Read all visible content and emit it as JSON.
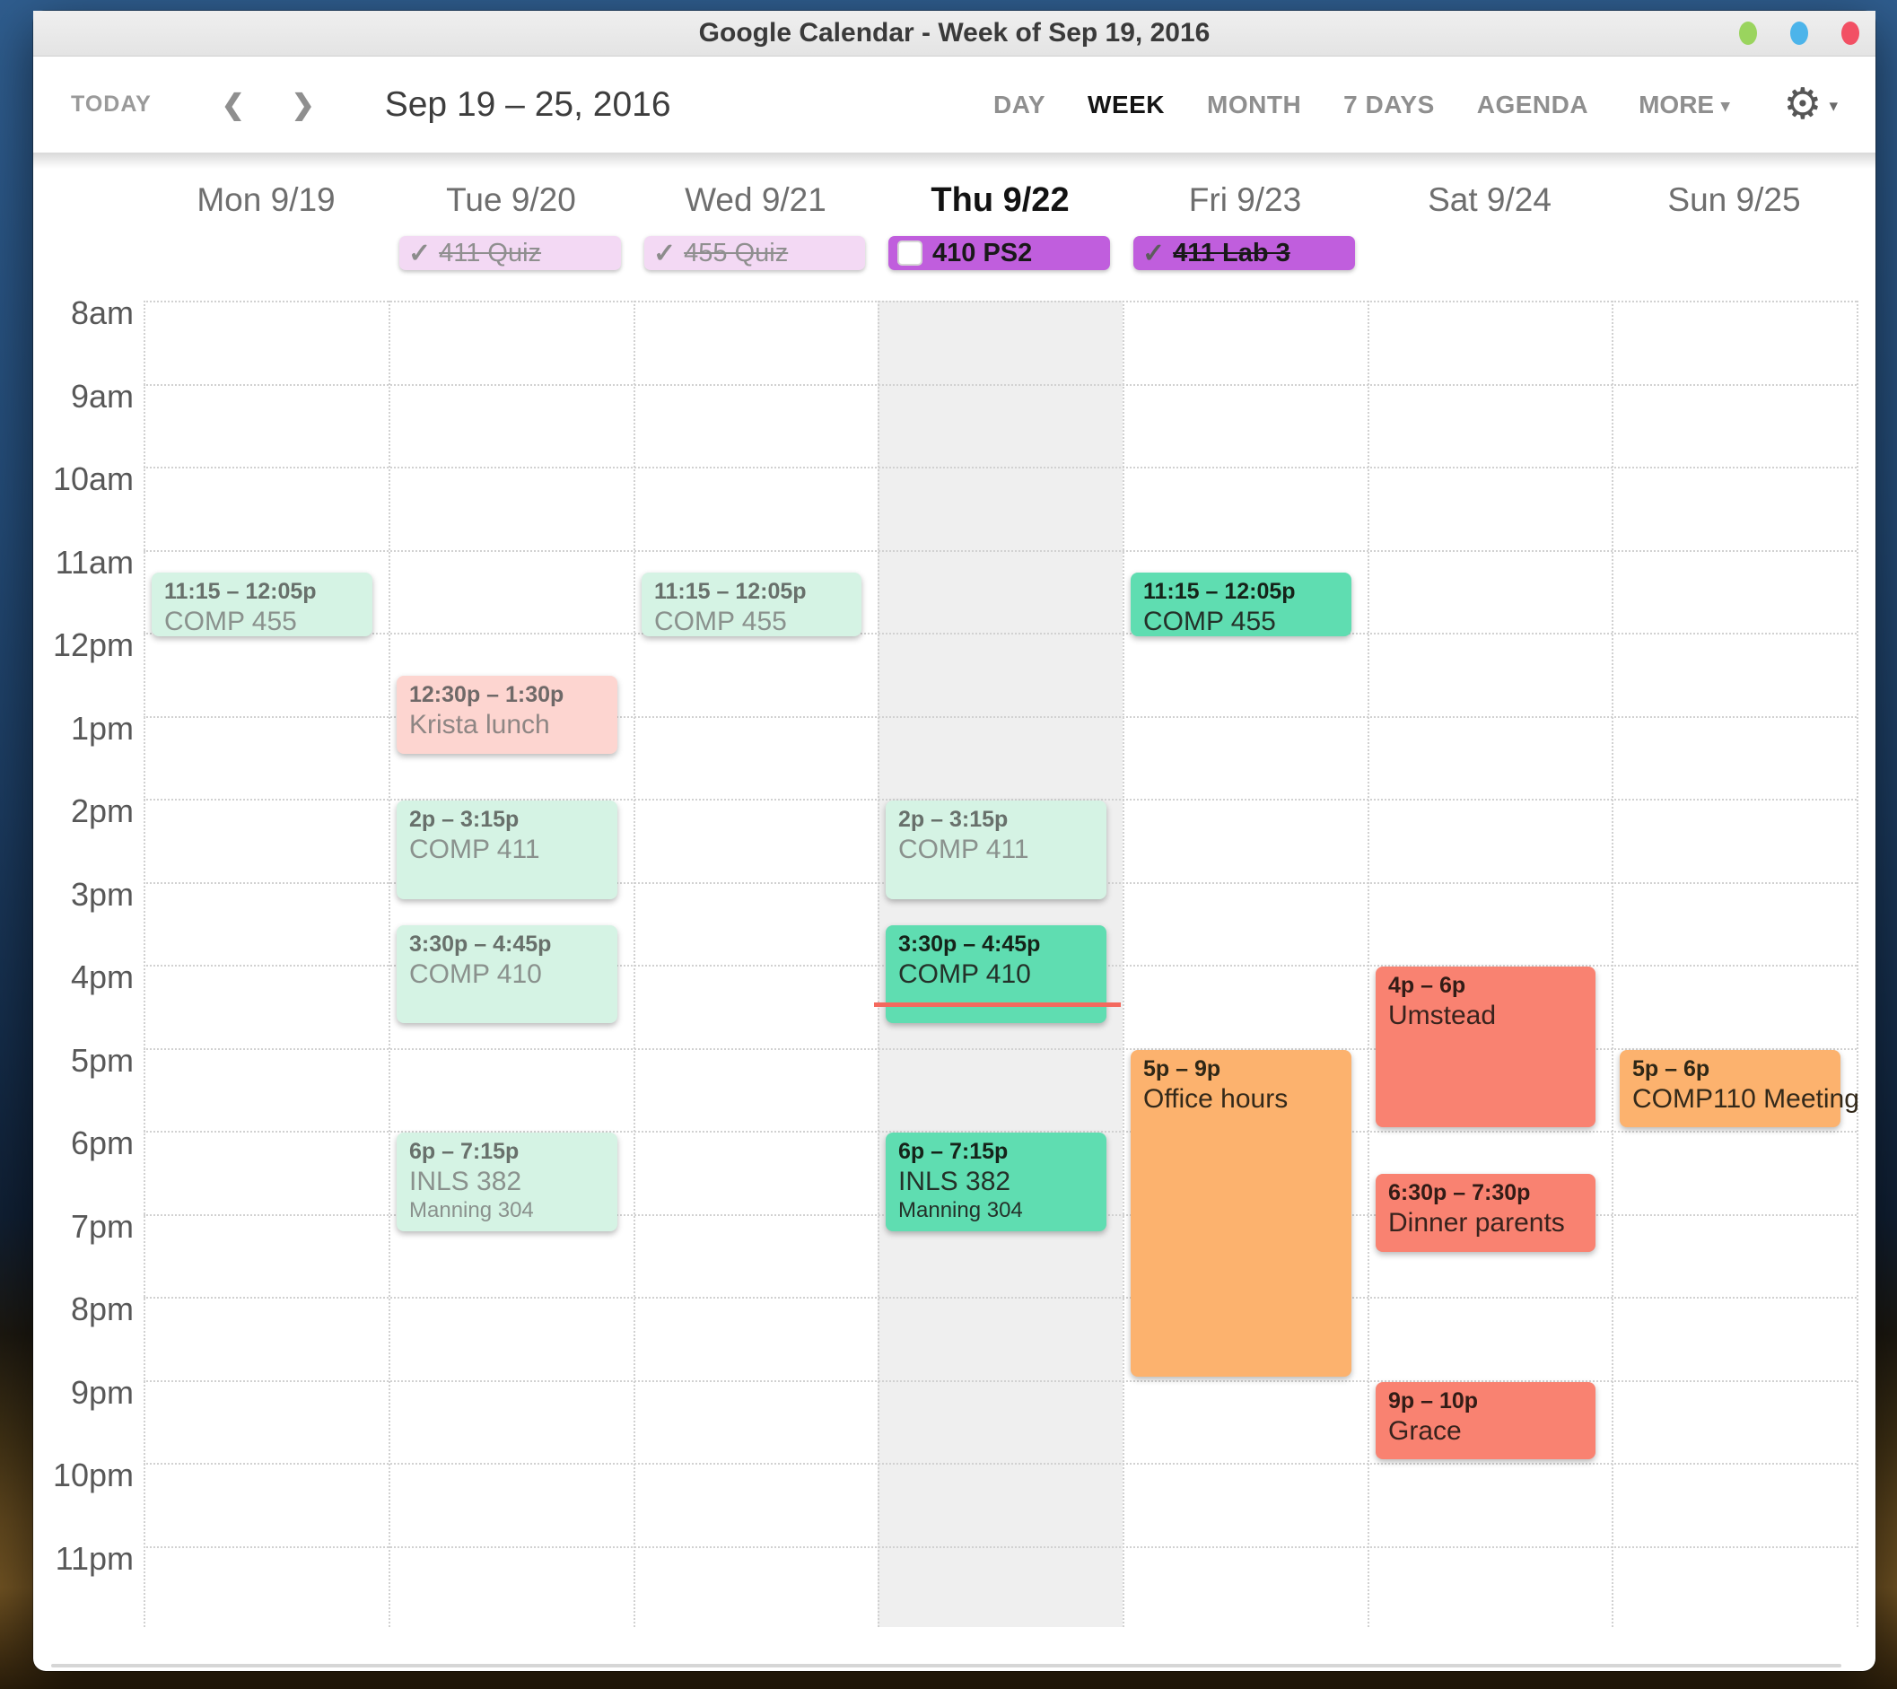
{
  "window": {
    "title": "Google Calendar - Week of Sep 19, 2016",
    "traffic_lights": [
      {
        "name": "green-dot",
        "color": "#9ad45e"
      },
      {
        "name": "blue-dot",
        "color": "#4cb4ea"
      },
      {
        "name": "red-dot",
        "color": "#f25064"
      }
    ]
  },
  "toolbar": {
    "today_label": "TODAY",
    "prev_glyph": "❮",
    "next_glyph": "❯",
    "date_range": "Sep 19 – 25, 2016",
    "views": [
      {
        "label": "DAY",
        "active": false
      },
      {
        "label": "WEEK",
        "active": true
      },
      {
        "label": "MONTH",
        "active": false
      },
      {
        "label": "7 DAYS",
        "active": false
      },
      {
        "label": "AGENDA",
        "active": false
      }
    ],
    "more_label": "MORE",
    "more_caret": "▾",
    "gear_glyph": "⚙",
    "gear_caret": "▾"
  },
  "calendar": {
    "hours": [
      "8am",
      "9am",
      "10am",
      "11am",
      "12pm",
      "1pm",
      "2pm",
      "3pm",
      "4pm",
      "5pm",
      "6pm",
      "7pm",
      "8pm",
      "9pm",
      "10pm",
      "11pm"
    ],
    "now_line": {
      "day_index": 3,
      "hour": 16.45
    },
    "days": [
      {
        "label": "Mon 9/19",
        "today": false,
        "all_day": null,
        "events": [
          {
            "time": "11:15 – 12:05p",
            "title": "COMP 455",
            "location": null,
            "variant": "mint",
            "start": 11.25,
            "end": 12.0833
          }
        ]
      },
      {
        "label": "Tue 9/20",
        "today": false,
        "all_day": {
          "text": "411 Quiz",
          "checked": true,
          "done": true,
          "variant": "light"
        },
        "events": [
          {
            "time": "12:30p – 1:30p",
            "title": "Krista lunch",
            "location": null,
            "variant": "pink",
            "start": 12.5,
            "end": 13.5
          },
          {
            "time": "2p – 3:15p",
            "title": "COMP 411",
            "location": null,
            "variant": "mint",
            "start": 14,
            "end": 15.25
          },
          {
            "time": "3:30p – 4:45p",
            "title": "COMP 410",
            "location": null,
            "variant": "mint",
            "start": 15.5,
            "end": 16.75
          },
          {
            "time": "6p – 7:15p",
            "title": "INLS 382",
            "location": "Manning 304",
            "variant": "mint",
            "start": 18,
            "end": 19.25
          }
        ]
      },
      {
        "label": "Wed 9/21",
        "today": false,
        "all_day": {
          "text": "455 Quiz",
          "checked": true,
          "done": true,
          "variant": "light"
        },
        "events": [
          {
            "time": "11:15 – 12:05p",
            "title": "COMP 455",
            "location": null,
            "variant": "mint",
            "start": 11.25,
            "end": 12.0833
          }
        ]
      },
      {
        "label": "Thu 9/22",
        "today": true,
        "all_day": {
          "text": "410 PS2",
          "checked": false,
          "done": false,
          "variant": "bright"
        },
        "events": [
          {
            "time": "2p – 3:15p",
            "title": "COMP 411",
            "location": null,
            "variant": "mint",
            "start": 14,
            "end": 15.25
          },
          {
            "time": "3:30p – 4:45p",
            "title": "COMP 410",
            "location": null,
            "variant": "green",
            "start": 15.5,
            "end": 16.75
          },
          {
            "time": "6p – 7:15p",
            "title": "INLS 382",
            "location": "Manning 304",
            "variant": "green",
            "start": 18,
            "end": 19.25
          }
        ]
      },
      {
        "label": "Fri 9/23",
        "today": false,
        "all_day": {
          "text": "411 Lab 3",
          "checked": true,
          "done": true,
          "variant": "bright"
        },
        "events": [
          {
            "time": "11:15 – 12:05p",
            "title": "COMP 455",
            "location": null,
            "variant": "green",
            "start": 11.25,
            "end": 12.0833
          },
          {
            "time": "5p – 9p",
            "title": "Office hours",
            "location": null,
            "variant": "orange",
            "start": 17,
            "end": 21
          }
        ]
      },
      {
        "label": "Sat 9/24",
        "today": false,
        "all_day": null,
        "events": [
          {
            "time": "4p – 6p",
            "title": "Umstead",
            "location": null,
            "variant": "salmon",
            "start": 16,
            "end": 18
          },
          {
            "time": "6:30p – 7:30p",
            "title": "Dinner parents",
            "location": null,
            "variant": "salmon",
            "start": 18.5,
            "end": 19.5
          },
          {
            "time": "9p – 10p",
            "title": "Grace",
            "location": null,
            "variant": "salmon",
            "start": 21,
            "end": 22
          }
        ]
      },
      {
        "label": "Sun 9/25",
        "today": false,
        "all_day": null,
        "events": [
          {
            "time": "5p – 6p",
            "title": "COMP110 Meeting",
            "location": null,
            "variant": "orange",
            "start": 17,
            "end": 18
          }
        ]
      }
    ]
  },
  "colors": {
    "event_variants": {
      "mint": {
        "bg": "#d5f3e4",
        "time": "#68706b",
        "title": "#8a918d"
      },
      "green": {
        "bg": "#5fddb1",
        "time": "#152319",
        "title": "#243129"
      },
      "pink": {
        "bg": "#fdd5d0",
        "time": "#6f6968",
        "title": "#8e8684"
      },
      "orange": {
        "bg": "#fcb26e",
        "time": "#2e2716",
        "title": "#33291a"
      },
      "salmon": {
        "bg": "#f98271",
        "time": "#321c16",
        "title": "#38231d"
      }
    },
    "allday_variants": {
      "light": {
        "bg": "#f3d9f4",
        "text": "#8f8f8f",
        "check": "#8c8c8c"
      },
      "bright": {
        "bg": "#c05edd",
        "text": "#191919",
        "check": "#5c5c5c"
      }
    },
    "today_column_bg": "#efefef",
    "now_line": "#f4695e"
  }
}
